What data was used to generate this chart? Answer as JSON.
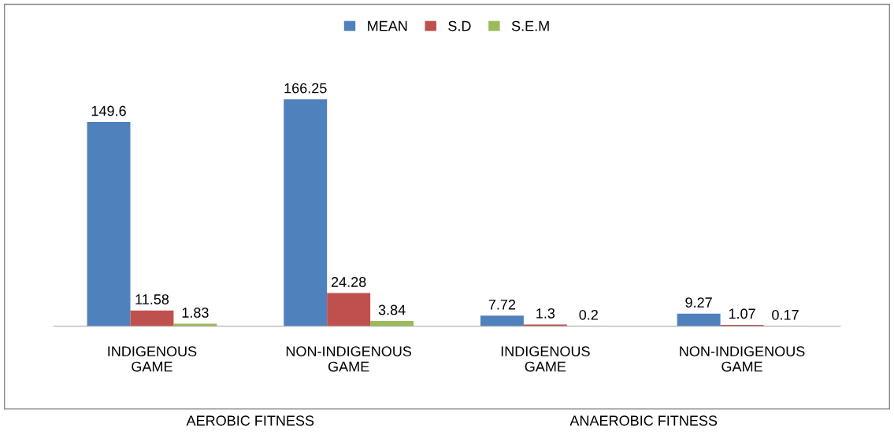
{
  "chart_data": {
    "type": "bar",
    "categories": [
      "INDIGENOUS\nGAME",
      "NON-INDIGENOUS\nGAME",
      "INDIGENOUS\nGAME",
      "NON-INDIGENOUS\nGAME"
    ],
    "series": [
      {
        "name": "MEAN",
        "color": "#4f81bd",
        "values": [
          149.6,
          166.25,
          7.72,
          9.27
        ]
      },
      {
        "name": "S.D",
        "color": "#c0504d",
        "values": [
          11.58,
          24.28,
          1.3,
          1.07
        ]
      },
      {
        "name": "S.E.M",
        "color": "#9bbb59",
        "values": [
          1.83,
          3.84,
          0.2,
          0.17
        ]
      }
    ],
    "data_labels": true,
    "legend": "top",
    "annotations": [
      "AEROBIC FITNESS",
      "ANAEROBIC FITNESS"
    ]
  }
}
